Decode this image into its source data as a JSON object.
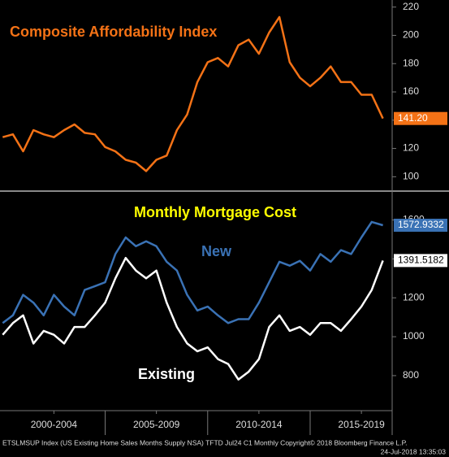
{
  "chart_data": [
    {
      "type": "line",
      "title": "Composite Affordability Index",
      "x": [
        2000,
        2000.5,
        2001,
        2001.5,
        2002,
        2002.5,
        2003,
        2003.5,
        2004,
        2004.5,
        2005,
        2005.5,
        2006,
        2006.5,
        2007,
        2007.5,
        2008,
        2008.5,
        2009,
        2009.5,
        2010,
        2010.5,
        2011,
        2011.5,
        2012,
        2012.5,
        2013,
        2013.5,
        2014,
        2014.5,
        2015,
        2015.5,
        2016,
        2016.5,
        2017,
        2017.5,
        2018,
        2018.55
      ],
      "series": [
        {
          "name": "Composite Affordability Index",
          "color": "#f47216",
          "values": [
            128,
            130,
            118,
            133,
            130,
            128,
            133,
            137,
            131,
            130,
            121,
            118,
            112,
            110,
            104,
            112,
            115,
            133,
            144,
            167,
            181,
            184,
            178,
            193,
            197,
            187,
            202,
            213,
            181,
            170,
            164,
            170,
            178,
            167,
            167,
            158,
            158,
            141.2
          ],
          "value_labels": [
            null,
            null,
            null,
            null,
            null,
            null,
            null,
            null,
            null,
            null,
            null,
            null,
            null,
            null,
            null,
            null,
            null,
            null,
            null,
            null,
            null,
            null,
            null,
            null,
            null,
            null,
            null,
            null,
            null,
            null,
            null,
            null,
            null,
            null,
            null,
            null,
            null,
            "141.20"
          ]
        }
      ],
      "xlim": [
        1999.87,
        2019.0
      ],
      "ylim": [
        91,
        225
      ],
      "yticks": [
        100,
        120,
        140,
        160,
        180,
        200,
        220
      ]
    },
    {
      "type": "line",
      "title": "Monthly Mortgage Cost",
      "annotations": [
        "New",
        "Existing"
      ],
      "x": [
        2000,
        2000.5,
        2001,
        2001.5,
        2002,
        2002.5,
        2003,
        2003.5,
        2004,
        2004.5,
        2005,
        2005.5,
        2006,
        2006.5,
        2007,
        2007.5,
        2008,
        2008.5,
        2009,
        2009.5,
        2010,
        2010.5,
        2011,
        2011.5,
        2012,
        2012.5,
        2013,
        2013.5,
        2014,
        2014.5,
        2015,
        2015.5,
        2016,
        2016.5,
        2017,
        2017.5,
        2018,
        2018.55
      ],
      "series": [
        {
          "name": "New",
          "color": "#3a72b5",
          "values": [
            1070,
            1110,
            1215,
            1175,
            1110,
            1215,
            1155,
            1110,
            1240,
            1260,
            1280,
            1425,
            1510,
            1465,
            1490,
            1465,
            1385,
            1340,
            1215,
            1135,
            1155,
            1110,
            1070,
            1090,
            1090,
            1175,
            1280,
            1385,
            1365,
            1390,
            1340,
            1425,
            1385,
            1445,
            1425,
            1510,
            1590,
            1572.9332
          ]
        },
        {
          "name": "Existing",
          "color": "#ffffff",
          "values": [
            1010,
            1070,
            1110,
            965,
            1030,
            1010,
            965,
            1050,
            1050,
            1110,
            1175,
            1300,
            1405,
            1340,
            1300,
            1340,
            1175,
            1050,
            965,
            925,
            945,
            885,
            860,
            780,
            820,
            885,
            1050,
            1110,
            1030,
            1050,
            1010,
            1070,
            1070,
            1030,
            1090,
            1155,
            1240,
            1391.5182
          ]
        }
      ],
      "xlim": [
        1999.87,
        2019.0
      ],
      "xticks": [
        {
          "value": 2002.5,
          "label": "2000-2004"
        },
        {
          "value": 2007.5,
          "label": "2005-2009"
        },
        {
          "value": 2012.5,
          "label": "2010-2014"
        },
        {
          "value": 2017.5,
          "label": "2015-2019"
        }
      ],
      "ylim": [
        620,
        1740
      ],
      "yticks": [
        800,
        1000,
        1200,
        1400,
        1600
      ]
    }
  ],
  "footer": {
    "source": "ETSLMSUP Index (US Existing Home Sales Months Supply NSA) TFTD Jul24 C1  Monthly  Copyright© 2018 Bloomberg Finance L.P.",
    "timestamp": "24-Jul-2018 13:35:03"
  }
}
